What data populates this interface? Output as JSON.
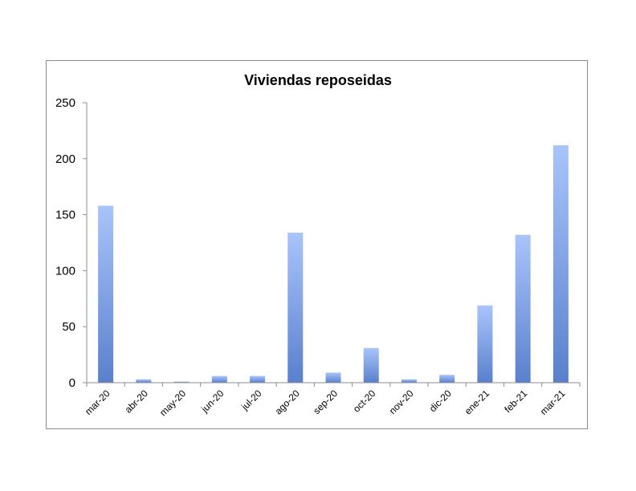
{
  "chart_data": {
    "type": "bar",
    "title": "Viviendas reposeidas",
    "xlabel": "",
    "ylabel": "",
    "categories": [
      "mar-20",
      "abr-20",
      "may-20",
      "jun-20",
      "jul-20",
      "ago-20",
      "sep-20",
      "oct-20",
      "nov-20",
      "dic-20",
      "ene-21",
      "feb-21",
      "mar-21"
    ],
    "values": [
      158,
      3,
      1,
      6,
      6,
      134,
      9,
      31,
      3,
      7,
      69,
      132,
      212
    ],
    "ylim": [
      0,
      250
    ],
    "yticks": [
      0,
      50,
      100,
      150,
      200,
      250
    ],
    "grid": false,
    "legend": "none",
    "colors": {
      "bar_top": "#a9c4fb",
      "bar_bottom": "#5a80cc",
      "axis": "#8c8c8c",
      "frame": "#8c8c8c"
    }
  }
}
